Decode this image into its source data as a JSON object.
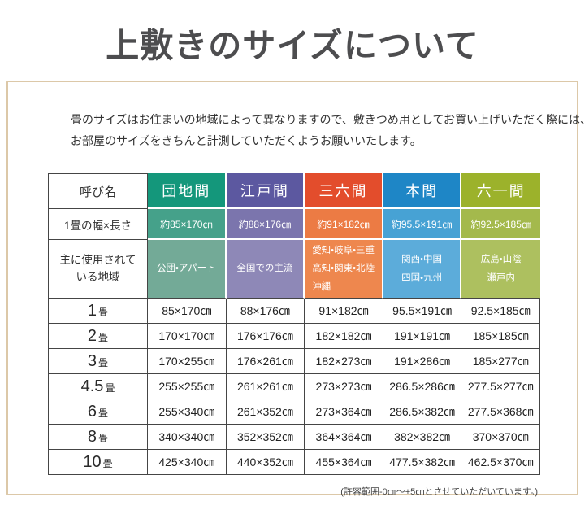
{
  "page": {
    "title": "上敷きのサイズについて",
    "intro_line1": "畳のサイズはお住まいの地域によって異なりますので、敷きつめ用としてお買い上げいただく際には、",
    "intro_line2": "お部屋のサイズをきちんと計測していただくようお願いいたします。",
    "footnote": "(許容範囲-0㎝～+5㎝とさせていただいています。)"
  },
  "colors": {
    "frame_border": "#dcc8a8",
    "grid_line": "#454545"
  },
  "table": {
    "name_header": "呼び名",
    "size_row_label": "1畳の幅×長さ",
    "region_row_label": "主に使用されて\nいる地域",
    "columns": [
      {
        "label": "団地間",
        "size": "約85×170㎝",
        "regions": "公団・アパート",
        "colors": {
          "header": "#14977b",
          "size": "#45a18a",
          "region": "#73aa97"
        }
      },
      {
        "label": "江戸間",
        "size": "約88×176㎝",
        "regions": "全国での主流",
        "colors": {
          "header": "#5c58a0",
          "size": "#7b75ad",
          "region": "#8e88b7"
        }
      },
      {
        "label": "三六間",
        "size": "約91×182㎝",
        "regions": "愛知・岐阜・三重\n高知・関東・北陸\n沖縄",
        "colors": {
          "header": "#e34d2c",
          "size": "#ec7b44",
          "region": "#ee874e"
        }
      },
      {
        "label": "本間",
        "size": "約95.5×191㎝",
        "regions": "関西・中国\n四国・九州",
        "colors": {
          "header": "#1e86c6",
          "size": "#47a2d4",
          "region": "#5cacda"
        }
      },
      {
        "label": "六一間",
        "size": "約92.5×185㎝",
        "regions": "広島・山陰\n瀬戸内",
        "colors": {
          "header": "#9cb22b",
          "size": "#a4b94c",
          "region": "#adc05f"
        }
      }
    ],
    "rows": [
      {
        "num": "1",
        "suffix": "畳",
        "values": [
          "85×170㎝",
          "88×176㎝",
          "91×182㎝",
          "95.5×191㎝",
          "92.5×185㎝"
        ]
      },
      {
        "num": "2",
        "suffix": "畳",
        "values": [
          "170×170㎝",
          "176×176㎝",
          "182×182㎝",
          "191×191㎝",
          "185×185㎝"
        ]
      },
      {
        "num": "3",
        "suffix": "畳",
        "values": [
          "170×255㎝",
          "176×261㎝",
          "182×273㎝",
          "191×286㎝",
          "185×277㎝"
        ]
      },
      {
        "num": "4.5",
        "suffix": "畳",
        "values": [
          "255×255㎝",
          "261×261㎝",
          "273×273㎝",
          "286.5×286㎝",
          "277.5×277㎝"
        ]
      },
      {
        "num": "6",
        "suffix": "畳",
        "values": [
          "255×340㎝",
          "261×352㎝",
          "273×364㎝",
          "286.5×382㎝",
          "277.5×368㎝"
        ]
      },
      {
        "num": "8",
        "suffix": "畳",
        "values": [
          "340×340㎝",
          "352×352㎝",
          "364×364㎝",
          "382×382㎝",
          "370×370㎝"
        ]
      },
      {
        "num": "10",
        "suffix": "畳",
        "values": [
          "425×340㎝",
          "440×352㎝",
          "455×364㎝",
          "477.5×382㎝",
          "462.5×370㎝"
        ]
      }
    ]
  }
}
